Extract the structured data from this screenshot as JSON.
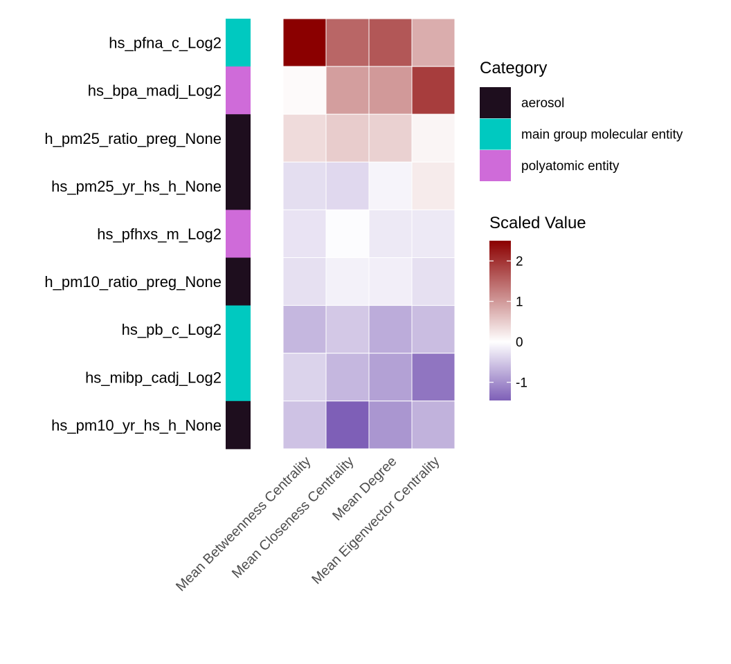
{
  "chart_data": {
    "type": "heatmap",
    "rows": [
      "hs_pfna_c_Log2",
      "hs_bpa_madj_Log2",
      "h_pm25_ratio_preg_None",
      "hs_pm25_yr_hs_h_None",
      "hs_pfhxs_m_Log2",
      "h_pm10_ratio_preg_None",
      "hs_pb_c_Log2",
      "hs_mibp_cadj_Log2",
      "hs_pm10_yr_hs_h_None"
    ],
    "columns": [
      "Mean Betweenness Centrality",
      "Mean Closeness Centrality",
      "Mean Degree",
      "Mean Eigenvector Centrality"
    ],
    "values": [
      [
        2.5,
        1.5,
        1.65,
        0.8
      ],
      [
        0.05,
        0.95,
        1.0,
        1.9
      ],
      [
        0.35,
        0.5,
        0.45,
        0.1
      ],
      [
        -0.3,
        -0.35,
        -0.1,
        0.2
      ],
      [
        -0.25,
        -0.03,
        -0.2,
        -0.2
      ],
      [
        -0.28,
        -0.13,
        -0.15,
        -0.28
      ],
      [
        -0.65,
        -0.5,
        -0.75,
        -0.6
      ],
      [
        -0.4,
        -0.65,
        -0.85,
        -1.25
      ],
      [
        -0.55,
        -1.45,
        -0.95,
        -0.7
      ]
    ],
    "row_categories": [
      "main group molecular entity",
      "polyatomic entity",
      "aerosol",
      "aerosol",
      "polyatomic entity",
      "aerosol",
      "main group molecular entity",
      "main group molecular entity",
      "aerosol"
    ],
    "category_legend": {
      "title": "Category",
      "entries": [
        {
          "label": "aerosol",
          "color": "#1e0e1e"
        },
        {
          "label": "main group molecular entity",
          "color": "#00c9c0"
        },
        {
          "label": "polyatomic entity",
          "color": "#cf6bd9"
        }
      ]
    },
    "color_legend": {
      "title": "Scaled Value",
      "ticks": [
        2,
        1,
        0,
        -1
      ],
      "range": [
        -1.45,
        2.5
      ],
      "low_color": "#7e5fb7",
      "mid_color": "#ffffff",
      "high_color": "#8b0000"
    }
  }
}
